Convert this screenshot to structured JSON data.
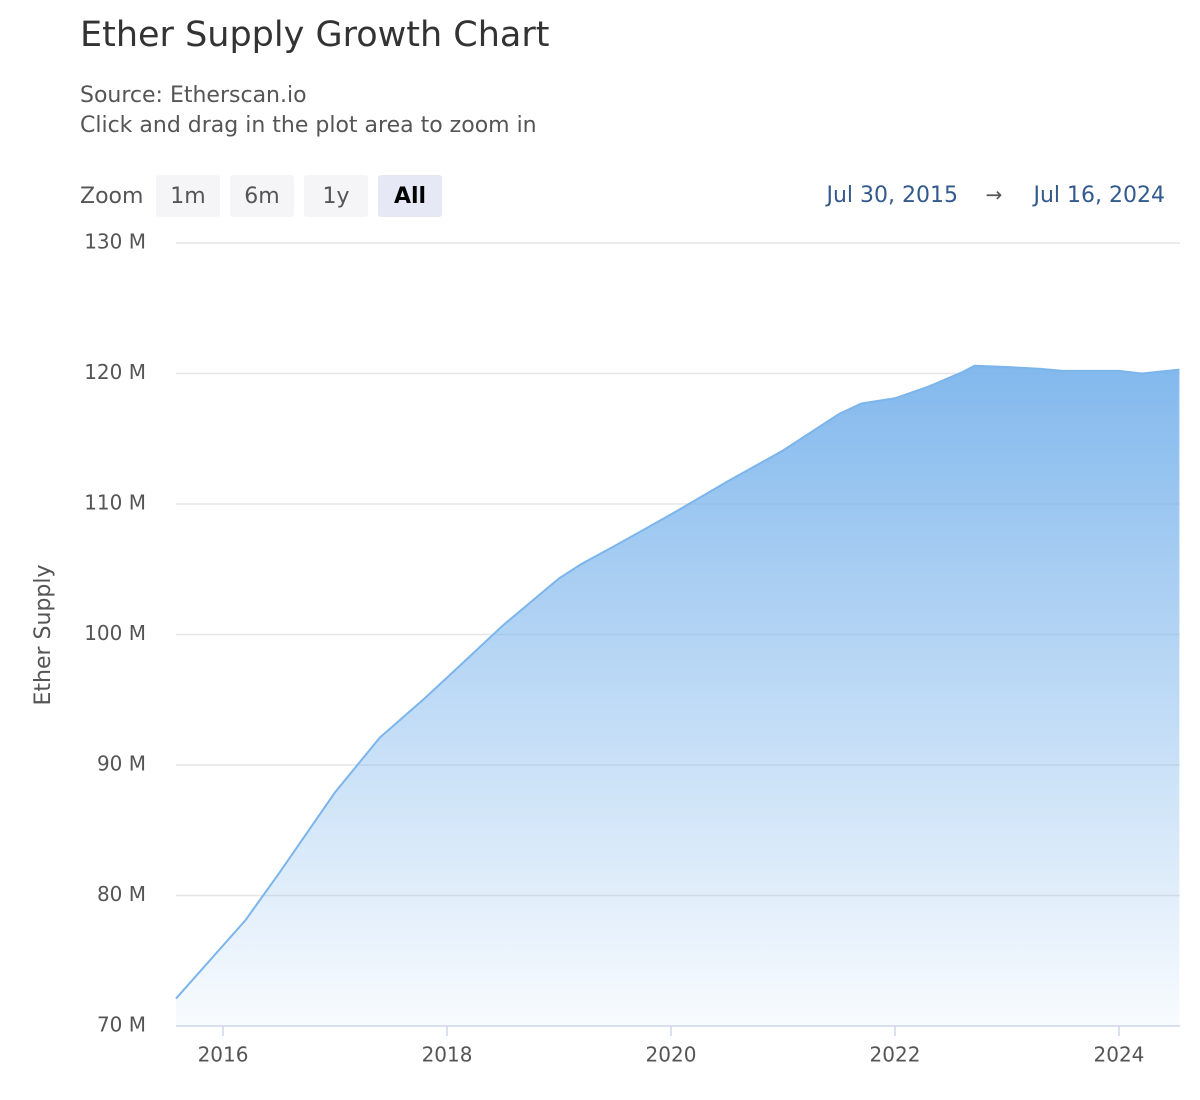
{
  "chart_data": {
    "type": "area",
    "title": "Ether Supply Growth Chart",
    "subtitle": "Source: Etherscan.io",
    "hint": "Click and drag in the plot area to zoom in",
    "zoom_label": "Zoom",
    "zoom_buttons": [
      "1m",
      "6m",
      "1y",
      "All"
    ],
    "range_start": "Jul 30, 2015",
    "range_separator": "→",
    "range_end": "Jul 16, 2024",
    "y_label": "Ether Supply",
    "color": "#7cb5ec",
    "grid": true,
    "x": [
      2015.58,
      2016.2,
      2016.5,
      2017.0,
      2017.4,
      2017.8,
      2018.0,
      2018.5,
      2019.0,
      2019.2,
      2019.5,
      2020.0,
      2020.5,
      2021.0,
      2021.5,
      2021.7,
      2022.0,
      2022.3,
      2022.6,
      2022.71,
      2023.0,
      2023.3,
      2023.5,
      2024.0,
      2024.2,
      2024.54
    ],
    "series": [
      {
        "name": "Ether Supply",
        "color": "#7cb5ec",
        "values": [
          72.1,
          78.1,
          81.7,
          87.9,
          92.1,
          95.1,
          96.7,
          100.7,
          104.3,
          105.4,
          106.8,
          109.2,
          111.7,
          114.1,
          116.9,
          117.7,
          118.1,
          119.0,
          120.1,
          120.6,
          120.5,
          120.35,
          120.2,
          120.2,
          120.0,
          120.3
        ]
      }
    ],
    "xlim": [
      2015.58,
      2024.545
    ],
    "xticks": [
      2016,
      2018,
      2020,
      2022,
      2024
    ],
    "ylim": [
      70,
      130
    ],
    "yticks": [
      {
        "value": 70,
        "label": "70 M"
      },
      {
        "value": 80,
        "label": "80 M"
      },
      {
        "value": 90,
        "label": "90 M"
      },
      {
        "value": 100,
        "label": "100 M"
      },
      {
        "value": 110,
        "label": "110 M"
      },
      {
        "value": 120,
        "label": "120 M"
      },
      {
        "value": 130,
        "label": "130 M"
      }
    ]
  }
}
